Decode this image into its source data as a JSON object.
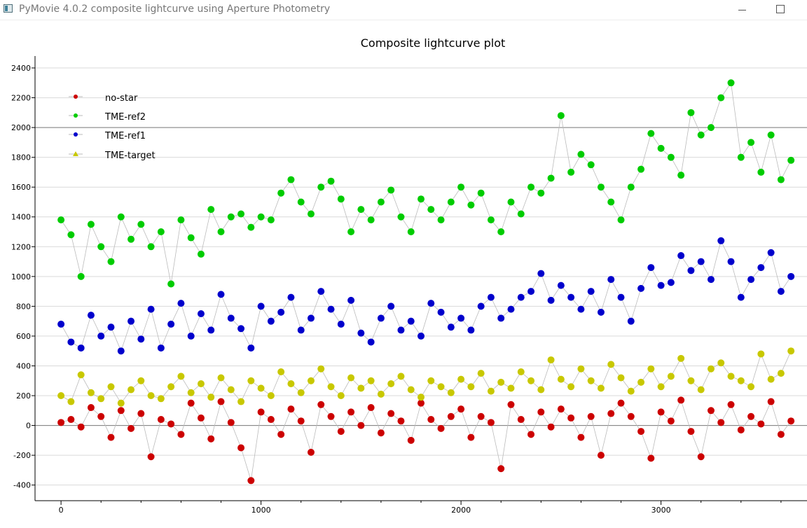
{
  "window": {
    "title": "PyMovie 4.0.2 composite lightcurve using Aperture Photometry",
    "icon": "pymovie-app-icon",
    "controls": [
      "minimize-icon",
      "maximize-icon"
    ]
  },
  "chart_data": {
    "type": "scatter",
    "title": "Composite lightcurve plot",
    "xlabel": "",
    "ylabel": "",
    "xlim": [
      -130,
      3730
    ],
    "ylim": [
      -505,
      2480
    ],
    "xticks": [
      0,
      1000,
      2000,
      3000
    ],
    "yticks": [
      -400,
      -200,
      0,
      200,
      400,
      600,
      800,
      1000,
      1200,
      1400,
      1600,
      1800,
      2000,
      2200,
      2400
    ],
    "grid": true,
    "legend_position": "top-left",
    "series": [
      {
        "name": "no-star",
        "color": "#cc0000",
        "x": [
          0,
          50,
          100,
          150,
          200,
          250,
          300,
          350,
          400,
          450,
          500,
          550,
          600,
          650,
          700,
          750,
          800,
          850,
          900,
          950,
          1000,
          1050,
          1100,
          1150,
          1200,
          1250,
          1300,
          1350,
          1400,
          1450,
          1500,
          1550,
          1600,
          1650,
          1700,
          1750,
          1800,
          1850,
          1900,
          1950,
          2000,
          2050,
          2100,
          2150,
          2200,
          2250,
          2300,
          2350,
          2400,
          2450,
          2500,
          2550,
          2600,
          2650,
          2700,
          2750,
          2800,
          2850,
          2900,
          2950,
          3000,
          3050,
          3100,
          3150,
          3200,
          3250,
          3300,
          3350,
          3400,
          3450,
          3500,
          3550,
          3600,
          3650
        ],
        "y": [
          20,
          40,
          -10,
          120,
          60,
          -80,
          100,
          -20,
          80,
          -210,
          40,
          10,
          -60,
          150,
          50,
          -90,
          160,
          20,
          -150,
          -370,
          90,
          40,
          -60,
          110,
          30,
          -180,
          140,
          60,
          -40,
          90,
          0,
          120,
          -50,
          80,
          30,
          -100,
          150,
          40,
          -20,
          60,
          110,
          -80,
          60,
          20,
          -290,
          140,
          40,
          -60,
          90,
          -10,
          110,
          50,
          -80,
          60,
          -200,
          80,
          150,
          60,
          -40,
          -220,
          90,
          30,
          170,
          -40,
          -210,
          100,
          20,
          140,
          -30,
          60,
          10,
          160,
          -60,
          30
        ]
      },
      {
        "name": "TME-ref2",
        "color": "#00cc00",
        "x": [
          0,
          50,
          100,
          150,
          200,
          250,
          300,
          350,
          400,
          450,
          500,
          550,
          600,
          650,
          700,
          750,
          800,
          850,
          900,
          950,
          1000,
          1050,
          1100,
          1150,
          1200,
          1250,
          1300,
          1350,
          1400,
          1450,
          1500,
          1550,
          1600,
          1650,
          1700,
          1750,
          1800,
          1850,
          1900,
          1950,
          2000,
          2050,
          2100,
          2150,
          2200,
          2250,
          2300,
          2350,
          2400,
          2450,
          2500,
          2550,
          2600,
          2650,
          2700,
          2750,
          2800,
          2850,
          2900,
          2950,
          3000,
          3050,
          3100,
          3150,
          3200,
          3250,
          3300,
          3350,
          3400,
          3450,
          3500,
          3550,
          3600,
          3650
        ],
        "y": [
          1380,
          1280,
          1000,
          1350,
          1200,
          1100,
          1400,
          1250,
          1350,
          1200,
          1300,
          950,
          1380,
          1260,
          1150,
          1450,
          1300,
          1400,
          1420,
          1330,
          1400,
          1380,
          1560,
          1650,
          1500,
          1420,
          1600,
          1640,
          1520,
          1300,
          1450,
          1380,
          1500,
          1580,
          1400,
          1300,
          1520,
          1450,
          1380,
          1500,
          1600,
          1480,
          1560,
          1380,
          1300,
          1500,
          1420,
          1600,
          1560,
          1660,
          2080,
          1700,
          1820,
          1750,
          1600,
          1500,
          1380,
          1600,
          1720,
          1960,
          1860,
          1800,
          1680,
          2100,
          1950,
          2000,
          2200,
          2300,
          1800,
          1900,
          1700,
          1950,
          1650,
          1780
        ]
      },
      {
        "name": "TME-ref1",
        "color": "#0000cc",
        "x": [
          0,
          50,
          100,
          150,
          200,
          250,
          300,
          350,
          400,
          450,
          500,
          550,
          600,
          650,
          700,
          750,
          800,
          850,
          900,
          950,
          1000,
          1050,
          1100,
          1150,
          1200,
          1250,
          1300,
          1350,
          1400,
          1450,
          1500,
          1550,
          1600,
          1650,
          1700,
          1750,
          1800,
          1850,
          1900,
          1950,
          2000,
          2050,
          2100,
          2150,
          2200,
          2250,
          2300,
          2350,
          2400,
          2450,
          2500,
          2550,
          2600,
          2650,
          2700,
          2750,
          2800,
          2850,
          2900,
          2950,
          3000,
          3050,
          3100,
          3150,
          3200,
          3250,
          3300,
          3350,
          3400,
          3450,
          3500,
          3550,
          3600,
          3650
        ],
        "y": [
          680,
          560,
          520,
          740,
          600,
          660,
          500,
          700,
          580,
          780,
          520,
          680,
          820,
          600,
          750,
          640,
          880,
          720,
          650,
          520,
          800,
          700,
          760,
          860,
          640,
          720,
          900,
          780,
          680,
          840,
          620,
          560,
          720,
          800,
          640,
          700,
          600,
          820,
          760,
          660,
          720,
          640,
          800,
          860,
          720,
          780,
          860,
          900,
          1020,
          840,
          940,
          860,
          780,
          900,
          760,
          980,
          860,
          700,
          920,
          1060,
          940,
          960,
          1140,
          1040,
          1100,
          980,
          1240,
          1100,
          860,
          980,
          1060,
          1160,
          900,
          1000
        ]
      },
      {
        "name": "TME-target",
        "color": "#c8c800",
        "x": [
          0,
          50,
          100,
          150,
          200,
          250,
          300,
          350,
          400,
          450,
          500,
          550,
          600,
          650,
          700,
          750,
          800,
          850,
          900,
          950,
          1000,
          1050,
          1100,
          1150,
          1200,
          1250,
          1300,
          1350,
          1400,
          1450,
          1500,
          1550,
          1600,
          1650,
          1700,
          1750,
          1800,
          1850,
          1900,
          1950,
          2000,
          2050,
          2100,
          2150,
          2200,
          2250,
          2300,
          2350,
          2400,
          2450,
          2500,
          2550,
          2600,
          2650,
          2700,
          2750,
          2800,
          2850,
          2900,
          2950,
          3000,
          3050,
          3100,
          3150,
          3200,
          3250,
          3300,
          3350,
          3400,
          3450,
          3500,
          3550,
          3600,
          3650
        ],
        "y": [
          200,
          160,
          340,
          220,
          180,
          260,
          150,
          240,
          300,
          200,
          180,
          260,
          330,
          220,
          280,
          190,
          320,
          240,
          160,
          300,
          250,
          200,
          360,
          280,
          220,
          300,
          380,
          260,
          200,
          320,
          250,
          300,
          210,
          280,
          330,
          240,
          190,
          300,
          260,
          220,
          310,
          260,
          350,
          230,
          290,
          250,
          360,
          300,
          240,
          440,
          310,
          260,
          380,
          300,
          250,
          410,
          320,
          230,
          290,
          380,
          260,
          330,
          450,
          300,
          240,
          380,
          420,
          330,
          300,
          260,
          480,
          310,
          350,
          500
        ]
      }
    ]
  }
}
